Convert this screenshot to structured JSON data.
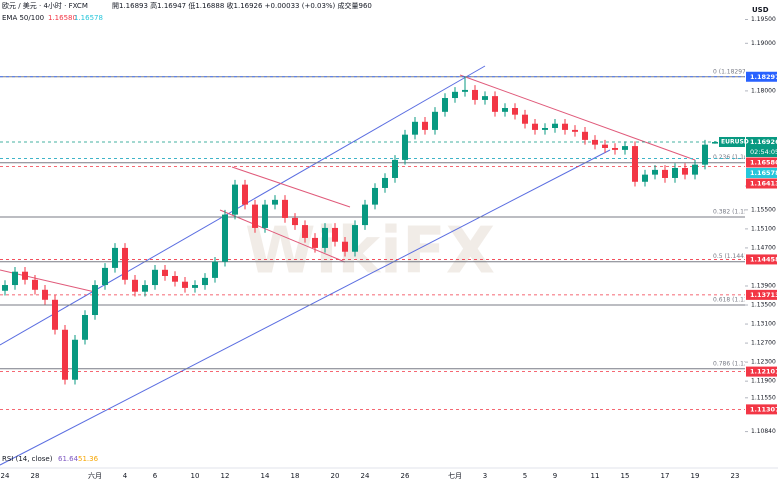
{
  "header": {
    "symbol_line": "欧元 / 美元 · 4小时 · FXCM",
    "ohlc": "開1.16893 高1.16947 低1.16888 收1.16926 +0.00033 (+0.03%) 成交量960",
    "indicator": "EMA 50/100",
    "ema50": "1.16580",
    "ema100": "1.16578",
    "currency": "USD"
  },
  "chart_data": {
    "type": "candlestick",
    "categories": [
      "24",
      null,
      null,
      "28",
      null,
      null,
      null,
      null,
      null,
      "六月",
      null,
      null,
      "4",
      null,
      null,
      "6",
      null,
      null,
      null,
      "10",
      null,
      null,
      "12",
      null,
      null,
      null,
      "14",
      null,
      null,
      "18",
      null,
      null,
      null,
      "20",
      null,
      null,
      "24",
      null,
      null,
      null,
      "26",
      null,
      null,
      null,
      null,
      "七月",
      null,
      null,
      "3",
      null,
      null,
      null,
      "5",
      null,
      null,
      "9",
      null,
      null,
      null,
      "11",
      null,
      null,
      "15",
      null,
      null,
      null,
      "17",
      null,
      null,
      "19",
      null,
      null,
      null,
      "23"
    ],
    "open": [
      1.138,
      1.1392,
      1.142,
      1.1403,
      1.1382,
      1.1361,
      1.1298,
      1.1193,
      1.1277,
      1.1329,
      1.1392,
      1.1428,
      1.147,
      1.1403,
      1.1378,
      1.1392,
      1.1424,
      1.1411,
      1.1399,
      1.1386,
      1.1392,
      1.1407,
      1.1441,
      1.154,
      1.1603,
      1.1561,
      1.1512,
      1.1561,
      1.1571,
      1.1533,
      1.1518,
      1.1491,
      1.147,
      1.1512,
      1.1483,
      1.1462,
      1.1518,
      1.1561,
      1.1596,
      1.1617,
      1.1655,
      1.1708,
      1.1735,
      1.1718,
      1.1756,
      1.1785,
      1.1798,
      1.1802,
      1.1781,
      1.1789,
      1.1756,
      1.1764,
      1.175,
      1.1731,
      1.1718,
      1.1722,
      1.1731,
      1.1718,
      1.1714,
      1.1697,
      1.1687,
      1.168,
      1.1676,
      1.1684,
      1.1609,
      1.1624,
      1.1634,
      1.1617,
      1.1638,
      1.1624,
      1.1645,
      1.16893,
      null,
      null
    ],
    "high": [
      1.1402,
      1.143,
      1.143,
      1.1413,
      1.1392,
      1.1371,
      1.1308,
      1.1287,
      1.1339,
      1.1402,
      1.1438,
      1.148,
      1.148,
      1.1413,
      1.1402,
      1.1434,
      1.1434,
      1.1421,
      1.1409,
      1.1402,
      1.1417,
      1.1451,
      1.155,
      1.1613,
      1.1613,
      1.1571,
      1.1571,
      1.1581,
      1.1581,
      1.1543,
      1.1528,
      1.1501,
      1.1522,
      1.1522,
      1.1493,
      1.1528,
      1.1571,
      1.1606,
      1.1627,
      1.1665,
      1.1718,
      1.1745,
      1.1745,
      1.1766,
      1.1795,
      1.1808,
      1.183,
      1.1812,
      1.1799,
      1.1799,
      1.1774,
      1.1774,
      1.176,
      1.1741,
      1.1732,
      1.1741,
      1.1741,
      1.1728,
      1.1724,
      1.1707,
      1.1697,
      1.169,
      1.1694,
      1.1694,
      1.1634,
      1.1644,
      1.1644,
      1.1648,
      1.1648,
      1.1655,
      1.1697,
      1.16947,
      null,
      null
    ],
    "low": [
      1.137,
      1.1382,
      1.1393,
      1.1372,
      1.1351,
      1.1288,
      1.1183,
      1.1183,
      1.1267,
      1.1319,
      1.1382,
      1.1418,
      1.1393,
      1.1368,
      1.1368,
      1.1382,
      1.1401,
      1.1389,
      1.1376,
      1.1376,
      1.1382,
      1.1397,
      1.1431,
      1.153,
      1.1551,
      1.1502,
      1.1502,
      1.1551,
      1.1523,
      1.1508,
      1.1481,
      1.146,
      1.146,
      1.1473,
      1.1452,
      1.1452,
      1.1508,
      1.1551,
      1.1586,
      1.1607,
      1.1645,
      1.1698,
      1.1708,
      1.1708,
      1.1746,
      1.1775,
      1.1788,
      1.1771,
      1.1771,
      1.1746,
      1.1746,
      1.174,
      1.1721,
      1.1708,
      1.1708,
      1.1712,
      1.1708,
      1.1704,
      1.1687,
      1.1677,
      1.167,
      1.1666,
      1.1666,
      1.1599,
      1.1599,
      1.1614,
      1.1607,
      1.1607,
      1.1614,
      1.1614,
      1.1635,
      1.16888,
      null,
      null
    ],
    "close": [
      1.1392,
      1.142,
      1.1403,
      1.1382,
      1.1361,
      1.1298,
      1.1193,
      1.1277,
      1.1329,
      1.1392,
      1.1428,
      1.147,
      1.1403,
      1.1378,
      1.1392,
      1.1424,
      1.1411,
      1.1399,
      1.1386,
      1.1392,
      1.1407,
      1.1441,
      1.154,
      1.1603,
      1.1561,
      1.1512,
      1.1561,
      1.1571,
      1.1533,
      1.1518,
      1.1491,
      1.147,
      1.1512,
      1.1483,
      1.1462,
      1.1518,
      1.1561,
      1.1596,
      1.1617,
      1.1655,
      1.1708,
      1.1735,
      1.1718,
      1.1756,
      1.1785,
      1.1798,
      1.1802,
      1.1781,
      1.1789,
      1.1756,
      1.1764,
      1.175,
      1.1731,
      1.1718,
      1.1722,
      1.1731,
      1.1718,
      1.1714,
      1.1697,
      1.1687,
      1.168,
      1.1676,
      1.1684,
      1.1609,
      1.1624,
      1.1634,
      1.1617,
      1.1638,
      1.1624,
      1.1645,
      1.1687,
      1.16926,
      null,
      null
    ],
    "up_color": "#089981",
    "down_color": "#f23645",
    "ylim": [
      1.1018,
      1.1991
    ],
    "yticks": [
      {
        "value": 1.195,
        "label": "1.19500"
      },
      {
        "value": 1.19,
        "label": "1.19000"
      },
      {
        "value": 1.18,
        "label": "1.18000"
      },
      {
        "value": 1.16,
        "label": "1.16000"
      },
      {
        "value": 1.155,
        "label": "1.15500"
      },
      {
        "value": 1.151,
        "label": "1.15100"
      },
      {
        "value": 1.147,
        "label": "1.14700"
      },
      {
        "value": 1.139,
        "label": "1.13900"
      },
      {
        "value": 1.135,
        "label": "1.13500"
      },
      {
        "value": 1.131,
        "label": "1.13100"
      },
      {
        "value": 1.127,
        "label": "1.12700"
      },
      {
        "value": 1.123,
        "label": "1.12300"
      },
      {
        "value": 1.119,
        "label": "1.11900"
      },
      {
        "value": 1.1155,
        "label": "1.11550"
      },
      {
        "value": 1.1084,
        "label": "1.10840"
      }
    ],
    "levels": [
      {
        "value": 1.18297,
        "label": "0 (1.18297)"
      },
      {
        "value": 1.1649,
        "label": "0.236 (1.16"
      },
      {
        "value": 1.1535,
        "label": "0.382 (1.15"
      },
      {
        "value": 1.1441,
        "label": "0.5 (1.1441"
      },
      {
        "value": 1.135,
        "label": "0.618 (1.13"
      },
      {
        "value": 1.1216,
        "label": "0.786 (1.122"
      }
    ],
    "tags": [
      {
        "value": 1.18297,
        "label": "1.18297",
        "color": "#2962ff"
      },
      {
        "value": 1.16926,
        "label": "1.16926",
        "color": "#089981",
        "name": "EURUSD",
        "countdown": "02:54:05"
      },
      {
        "value": 1.1658,
        "label": "1.16580",
        "color": "#f23645"
      },
      {
        "value": 1.16578,
        "label": "1.16578",
        "color": "#26c6da"
      },
      {
        "value": 1.16413,
        "label": "1.16413",
        "color": "#f23645"
      },
      {
        "value": 1.14458,
        "label": "1.14458",
        "color": "#f23645"
      },
      {
        "value": 1.13713,
        "label": "1.13713",
        "color": "#f23645"
      },
      {
        "value": 1.12101,
        "label": "1.12101",
        "color": "#f23645"
      },
      {
        "value": 1.11307,
        "label": "1.11307",
        "color": "#f23645"
      }
    ],
    "indicator": {
      "label": "RSI (14, close)",
      "value_labels": [
        "61.64",
        "51.36"
      ]
    }
  },
  "watermark": "WikiFX"
}
